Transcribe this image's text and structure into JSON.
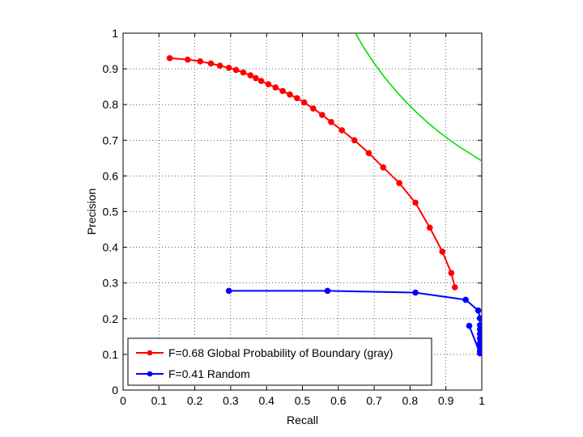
{
  "chart_data": {
    "type": "line",
    "title": "",
    "xlabel": "Recall",
    "ylabel": "Precision",
    "xlim": [
      0,
      1
    ],
    "ylim": [
      0,
      1
    ],
    "grid": true,
    "legend_position": "bottom-left",
    "xticks": [
      "0",
      "0.1",
      "0.2",
      "0.3",
      "0.4",
      "0.5",
      "0.6",
      "0.7",
      "0.8",
      "0.9",
      "1"
    ],
    "yticks": [
      "0",
      "0.1",
      "0.2",
      "0.3",
      "0.4",
      "0.5",
      "0.6",
      "0.7",
      "0.8",
      "0.9",
      "1"
    ],
    "series": [
      {
        "name": "F=0.68 Global Probability of Boundary (gray)",
        "color": "#ff0000",
        "marker": "dot",
        "x": [
          0.13,
          0.18,
          0.215,
          0.245,
          0.27,
          0.295,
          0.315,
          0.335,
          0.355,
          0.37,
          0.385,
          0.405,
          0.425,
          0.445,
          0.465,
          0.485,
          0.505,
          0.53,
          0.555,
          0.58,
          0.61,
          0.645,
          0.685,
          0.725,
          0.77,
          0.815,
          0.855,
          0.89,
          0.915,
          0.925
        ],
        "y": [
          0.93,
          0.926,
          0.921,
          0.915,
          0.909,
          0.903,
          0.897,
          0.89,
          0.882,
          0.874,
          0.866,
          0.857,
          0.848,
          0.838,
          0.828,
          0.818,
          0.806,
          0.789,
          0.771,
          0.751,
          0.728,
          0.7,
          0.664,
          0.624,
          0.58,
          0.525,
          0.455,
          0.388,
          0.328,
          0.288
        ]
      },
      {
        "name": "F=0.41 Random",
        "color": "#0000ff",
        "marker": "dot",
        "x": [
          0.295,
          0.57,
          0.815,
          0.955,
          0.99,
          0.995,
          0.995,
          0.995,
          0.995,
          0.995,
          0.995,
          0.995,
          0.995,
          0.995,
          0.965
        ],
        "y": [
          0.278,
          0.278,
          0.273,
          0.253,
          0.223,
          0.201,
          0.182,
          0.17,
          0.157,
          0.145,
          0.132,
          0.12,
          0.11,
          0.103,
          0.18
        ]
      },
      {
        "color": "#00e000",
        "marker": "none",
        "x": [
          0.648,
          0.67,
          0.7,
          0.73,
          0.76,
          0.79,
          0.82,
          0.85,
          0.88,
          0.91,
          0.94,
          0.97,
          1.0
        ],
        "y": [
          1.0,
          0.961,
          0.916,
          0.875,
          0.839,
          0.806,
          0.776,
          0.749,
          0.724,
          0.701,
          0.68,
          0.661,
          0.642
        ]
      }
    ]
  }
}
